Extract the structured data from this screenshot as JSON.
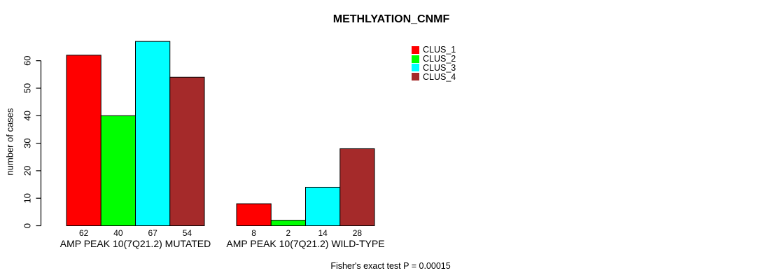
{
  "chart_data": {
    "type": "bar",
    "title": "METHLYATION_CNMF",
    "xlabel": "",
    "ylabel": "number of cases",
    "ylim": [
      0,
      67
    ],
    "yticks": [
      0,
      10,
      20,
      30,
      40,
      50,
      60
    ],
    "grid": false,
    "legend_position": "top-right",
    "categories": [
      "AMP PEAK 10(7Q21.2) MUTATED",
      "AMP PEAK 10(7Q21.2) WILD-TYPE"
    ],
    "series": [
      {
        "name": "CLUS_1",
        "color": "#FF0000",
        "values": [
          62,
          8
        ]
      },
      {
        "name": "CLUS_2",
        "color": "#00FF00",
        "values": [
          40,
          2
        ]
      },
      {
        "name": "CLUS_3",
        "color": "#00FFFF",
        "values": [
          67,
          14
        ]
      },
      {
        "name": "CLUS_4",
        "color": "#A52A2A",
        "values": [
          54,
          28
        ]
      }
    ],
    "bar_value_labels": [
      [
        62,
        40,
        67,
        54
      ],
      [
        8,
        2,
        14,
        28
      ]
    ],
    "annotation": "Fisher's exact test P = 0.00015",
    "axis_color": "#000000",
    "bar_border_color": "#000000",
    "background_color": "#FFFFFF"
  }
}
